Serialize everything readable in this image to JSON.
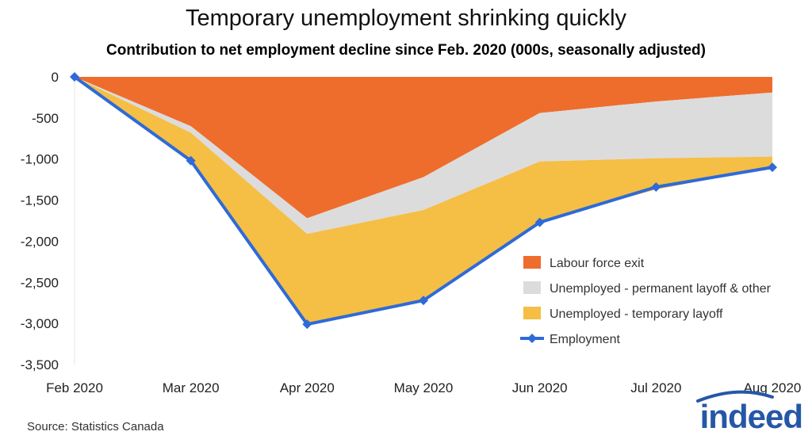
{
  "chart_data": {
    "type": "area",
    "title": "Temporary unemployment shrinking quickly",
    "subtitle": "Contribution to net employment decline since Feb. 2020 (000s, seasonally adjusted)",
    "categories": [
      "Feb 2020",
      "Mar 2020",
      "Apr 2020",
      "May 2020",
      "Jun 2020",
      "Jul 2020",
      "Aug 2020"
    ],
    "ylim": [
      -3500,
      0
    ],
    "yticks": [
      0,
      -500,
      -1000,
      -1500,
      -2000,
      -2500,
      -3000,
      -3500
    ],
    "ytick_labels": [
      "0",
      "-500",
      "-1,000",
      "-1,500",
      "-2,000",
      "-2,500",
      "-3,000",
      "-3,500"
    ],
    "series": [
      {
        "name": "Labour force exit",
        "kind": "area",
        "color": "#ee6d2d",
        "values": [
          0,
          -600,
          -1720,
          -1220,
          -440,
          -300,
          -190
        ]
      },
      {
        "name": "Unemployed - permanent layoff & other",
        "kind": "area",
        "color": "#dcdcdc",
        "values": [
          0,
          -80,
          -190,
          -400,
          -590,
          -690,
          -780
        ]
      },
      {
        "name": "Unemployed - temporary layoff",
        "kind": "area",
        "color": "#f5be45",
        "values": [
          0,
          -340,
          -1100,
          -1100,
          -730,
          -380,
          -130
        ]
      },
      {
        "name": "Employment",
        "kind": "line",
        "color": "#2e6ad8",
        "values": [
          0,
          -1020,
          -3010,
          -2720,
          -1770,
          -1340,
          -1100
        ]
      }
    ],
    "legend_position": "right"
  },
  "source": "Source: Statistics Canada",
  "logo_text": "indeed"
}
